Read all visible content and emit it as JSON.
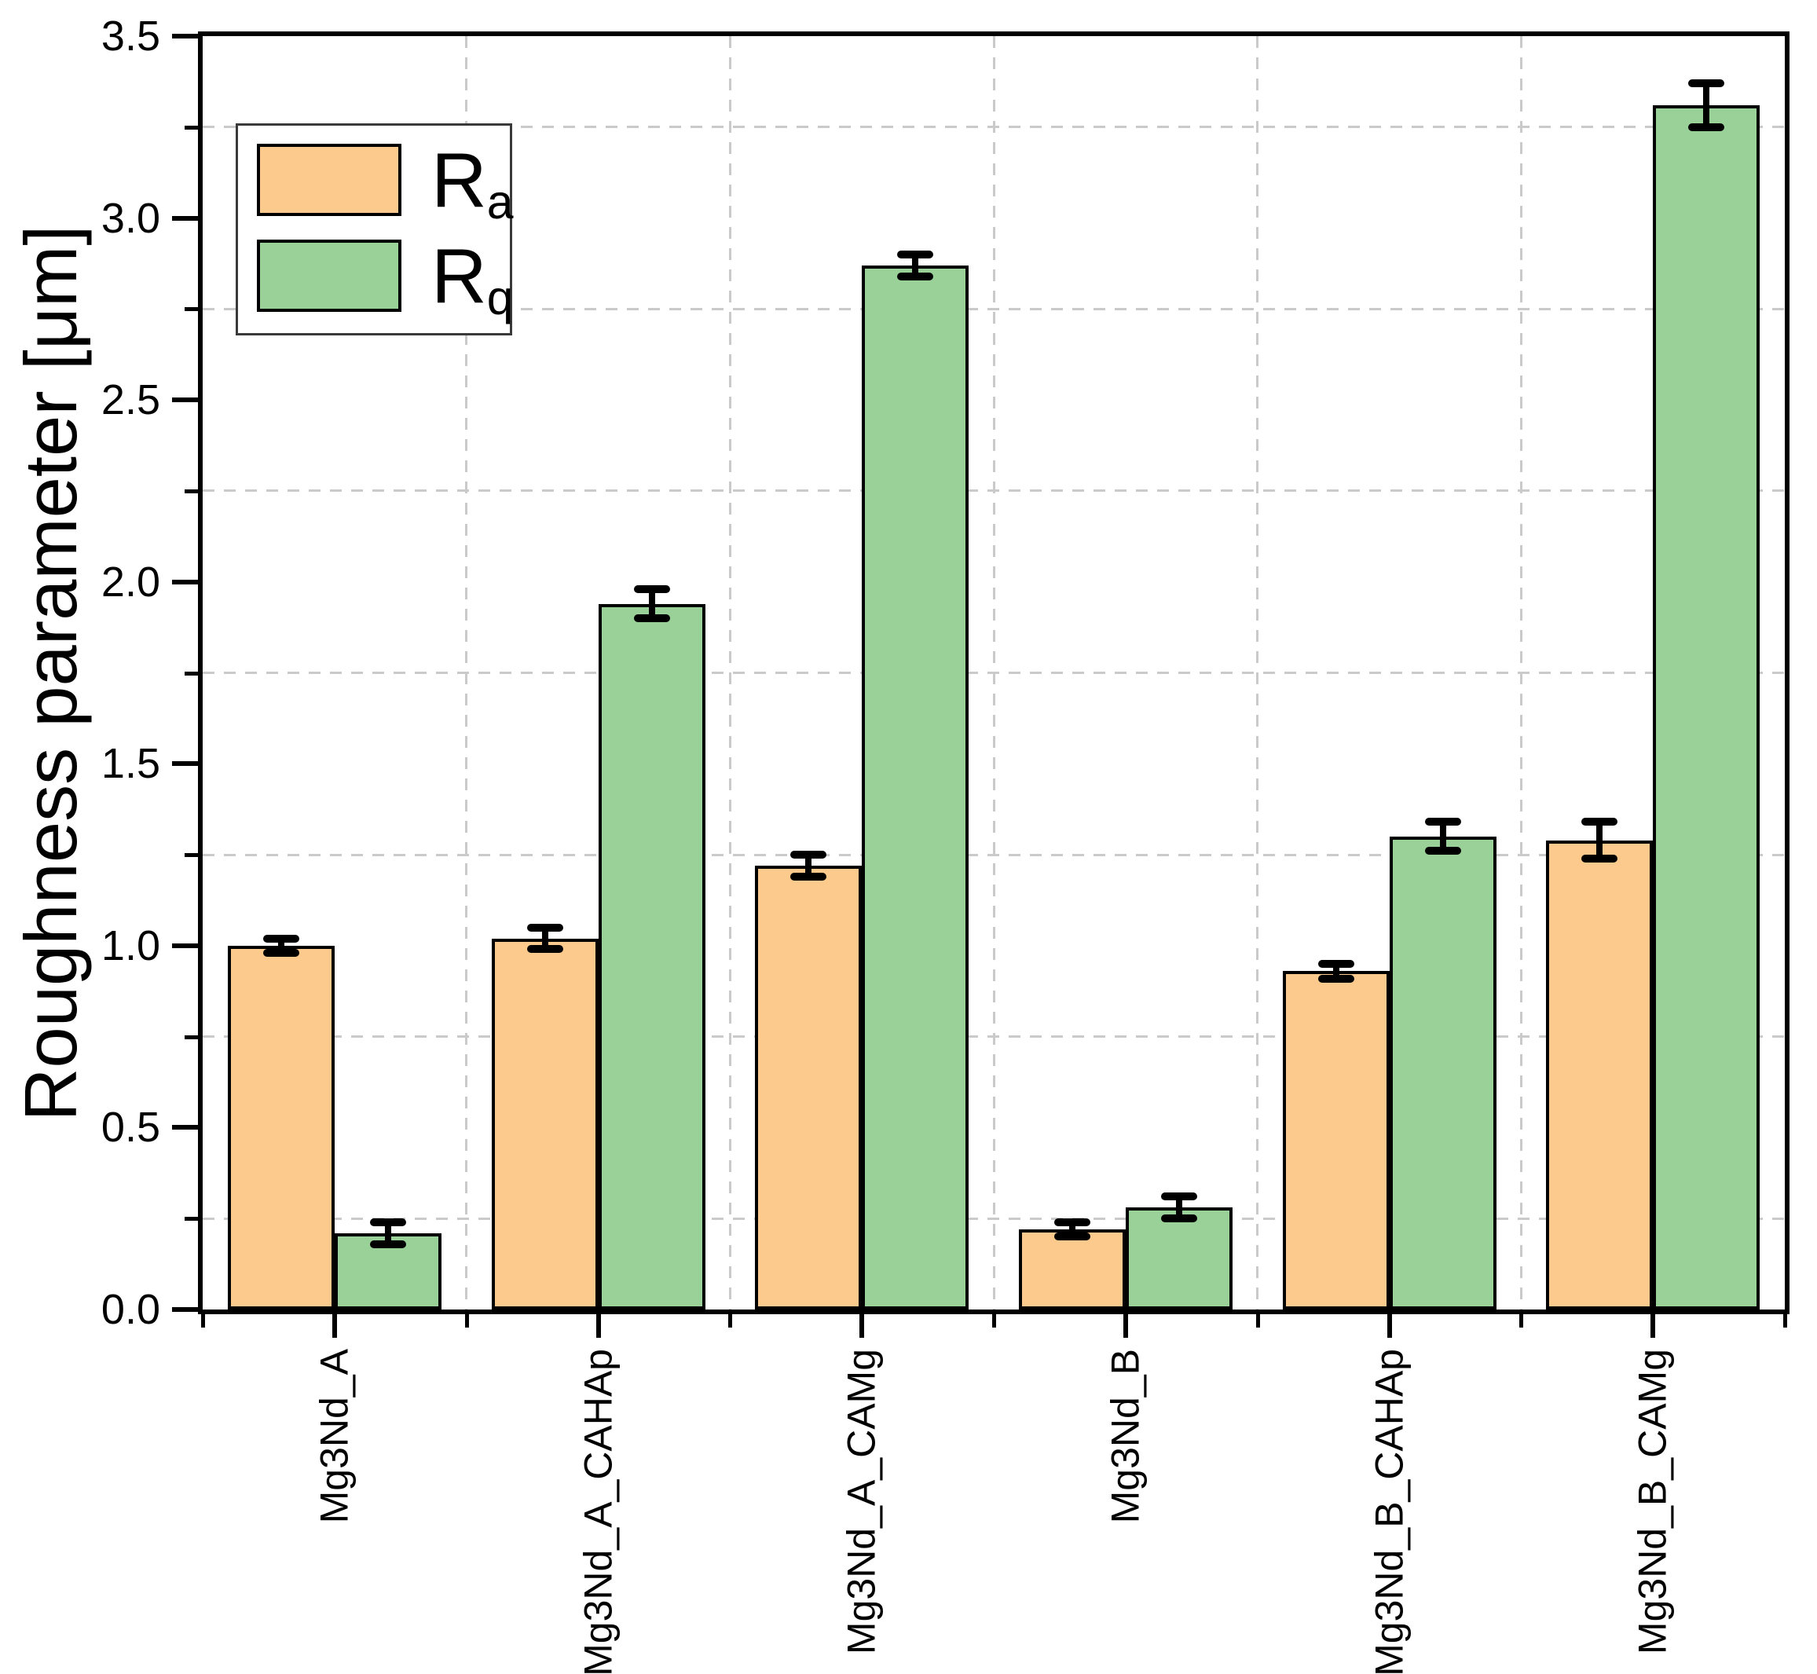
{
  "figure": {
    "background": "#ffffff",
    "title": "",
    "y_axis_title": "Roughness parameter [μm]",
    "legend": {
      "position": "top-left",
      "entries": [
        {
          "series": "Ra",
          "label_main": "R",
          "label_sub": "a",
          "color": "#FCCA8C"
        },
        {
          "series": "Rq",
          "label_main": "R",
          "label_sub": "q",
          "color": "#99D199"
        }
      ]
    }
  },
  "chart_data": {
    "type": "bar",
    "title": "",
    "xlabel": "",
    "ylabel": "Roughness parameter [μm]",
    "ylim": [
      0,
      3.5
    ],
    "y_major_tick_step": 0.5,
    "y_minor_tick_step": 0.25,
    "y_tick_labels": [
      "0.0",
      "0.5",
      "1.0",
      "1.5",
      "2.0",
      "2.5",
      "3.0",
      "3.5"
    ],
    "categories": [
      "Mg3Nd_A",
      "Mg3Nd_A_CAHAp",
      "Mg3Nd_A_CAMg",
      "Mg3Nd_B",
      "Mg3Nd_B_CAHAp",
      "Mg3Nd_B_CAMg"
    ],
    "series": [
      {
        "name": "Ra",
        "color": "#FCCA8C",
        "values": [
          1.0,
          1.02,
          1.22,
          0.22,
          0.93,
          1.29
        ],
        "errors": [
          0.02,
          0.03,
          0.03,
          0.02,
          0.02,
          0.05
        ]
      },
      {
        "name": "Rq",
        "color": "#99D199",
        "values": [
          0.21,
          1.94,
          2.87,
          0.28,
          1.3,
          3.31
        ],
        "errors": [
          0.03,
          0.04,
          0.03,
          0.03,
          0.04,
          0.06
        ]
      }
    ],
    "bar_edge_color": "#000000",
    "error_bar_color": "#000000",
    "grid": {
      "style": "dashed",
      "color": "#cacaca",
      "horizontal_at": [
        0.25,
        0.75,
        1.25,
        1.75,
        2.25,
        2.75,
        3.25
      ],
      "vertical_at_category_boundaries": true
    },
    "legend_position": "top-left"
  }
}
